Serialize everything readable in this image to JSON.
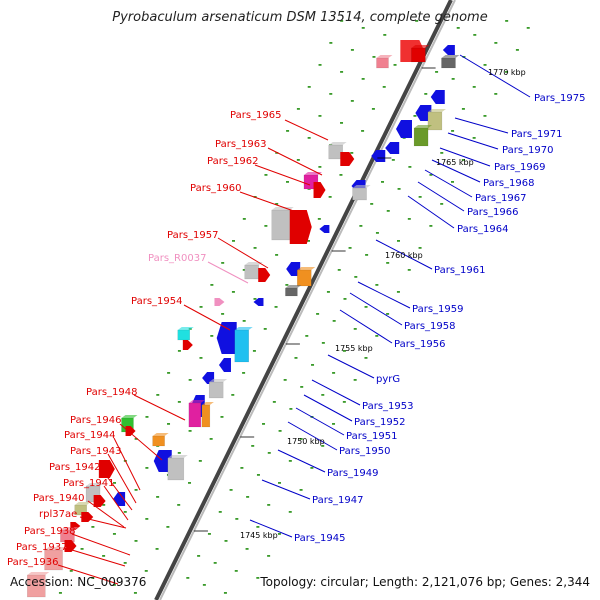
{
  "title": "Pyrobaculum arsenaticum DSM 13514, complete genome",
  "accession": "Accession: NC_009376",
  "topology": "Topology: circular; Length: 2,121,076 bp; Genes: 2,344",
  "colors": {
    "left_label": "#e00000",
    "right_label": "#0000c8",
    "rna_label": "#f090c0"
  },
  "kbp_marks": [
    "1770 kbp",
    "1765 kbp",
    "1760 kbp",
    "1755 kbp",
    "1750 kbp",
    "1745 kbp"
  ],
  "left_labels": [
    "Pars_1965",
    "Pars_1963",
    "Pars_1962",
    "Pars_1960",
    "Pars_1957",
    "Pars_R0037",
    "Pars_1954",
    "Pars_1948",
    "Pars_1946",
    "Pars_1944",
    "Pars_1943",
    "Pars_1942",
    "Pars_1941",
    "Pars_1940",
    "rpl37ae",
    "Pars_1938",
    "Pars_1937",
    "Pars_1936"
  ],
  "right_labels": [
    "Pars_1975",
    "Pars_1971",
    "Pars_1970",
    "Pars_1969",
    "Pars_1968",
    "Pars_1967",
    "Pars_1966",
    "Pars_1964",
    "Pars_1961",
    "Pars_1959",
    "Pars_1958",
    "Pars_1956",
    "pyrG",
    "Pars_1953",
    "Pars_1952",
    "Pars_1951",
    "Pars_1950",
    "Pars_1949",
    "Pars_1947",
    "Pars_1945"
  ]
}
